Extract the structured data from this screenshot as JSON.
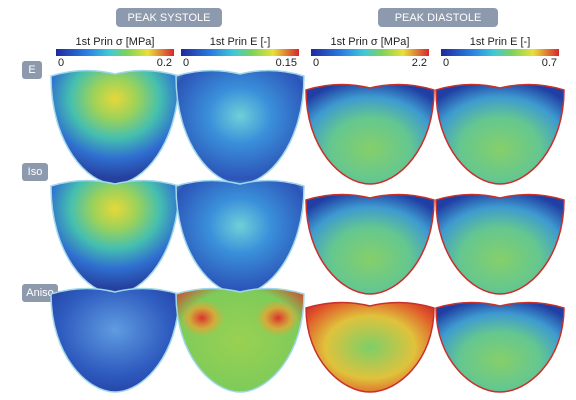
{
  "groups": [
    {
      "title": "PEAK SYSTOLE"
    },
    {
      "title": "PEAK DIASTOLE"
    }
  ],
  "columns": [
    {
      "label": "1st Prin σ [MPa]",
      "min": 0,
      "max": 0.2
    },
    {
      "label": "1st Prin E [-]",
      "min": 0,
      "max": 0.15
    },
    {
      "label": "1st Prin σ [MPa]",
      "min": 0,
      "max": 2.2
    },
    {
      "label": "1st Prin E [-]",
      "min": 0,
      "max": 0.7
    }
  ],
  "rows": [
    "E",
    "Iso",
    "Aniso"
  ]
}
